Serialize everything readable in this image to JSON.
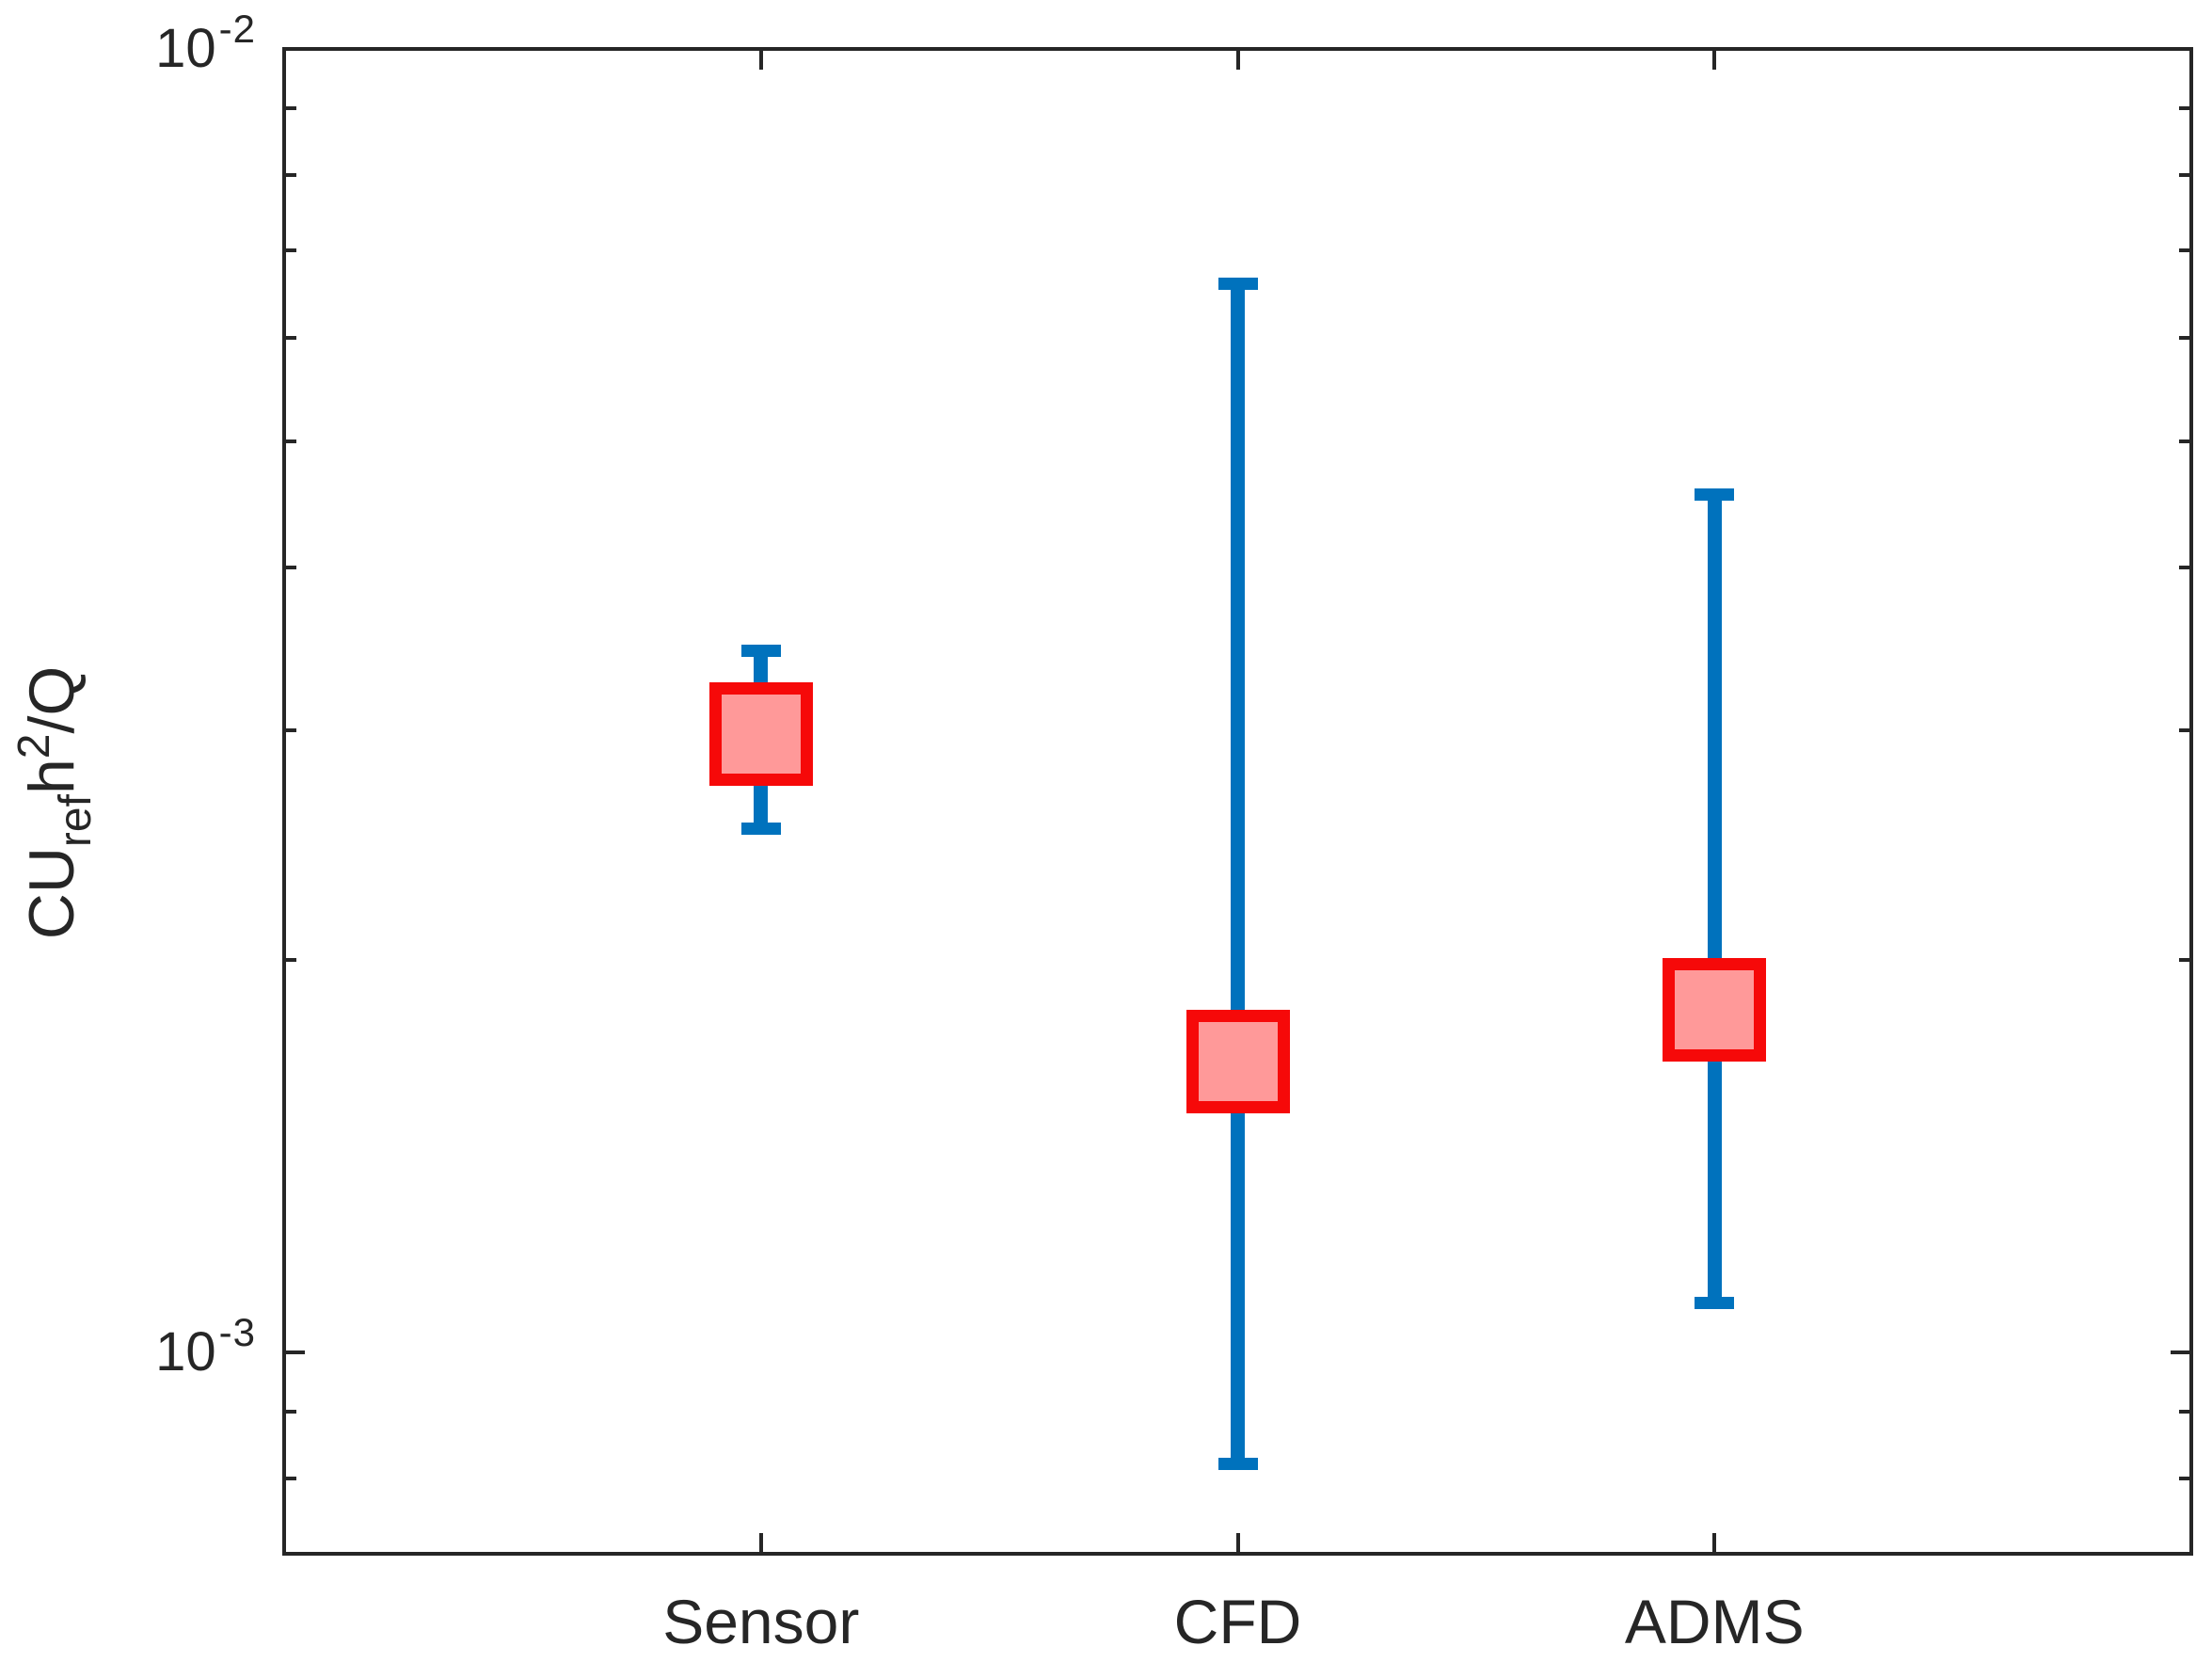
{
  "chart_data": {
    "type": "scatter",
    "subtype": "errorbar",
    "title": "",
    "xlabel": "",
    "ylabel": "CU_ref h^2/Q",
    "ylabel_segments": [
      {
        "text": "CU",
        "style": "base"
      },
      {
        "text": "ref",
        "style": "sub"
      },
      {
        "text": "h",
        "style": "base"
      },
      {
        "text": "2",
        "style": "sup"
      },
      {
        "text": "/Q",
        "style": "base"
      }
    ],
    "categories": [
      "Sensor",
      "CFD",
      "ADMS"
    ],
    "series": [
      {
        "name": "median",
        "values": [
          0.00298,
          0.00167,
          0.00183
        ]
      },
      {
        "name": "upper_whisker",
        "values": [
          0.00345,
          0.0066,
          0.00455
        ]
      },
      {
        "name": "lower_whisker",
        "values": [
          0.00252,
          0.00082,
          0.00109
        ]
      }
    ],
    "yscale": "log",
    "ylim": [
      0.0007,
      0.01
    ],
    "y_major_ticks": [
      {
        "value": 0.01,
        "base": "10",
        "exponent": "-2"
      },
      {
        "value": 0.001,
        "base": "10",
        "exponent": "-3"
      }
    ],
    "y_minor_ticks": [
      0.009,
      0.008,
      0.007,
      0.006,
      0.005,
      0.004,
      0.003,
      0.002,
      0.0009,
      0.0008
    ],
    "grid": false,
    "legend": false,
    "colors": {
      "whisker": "#0072BD",
      "marker_fill": "#FF9999",
      "marker_edge": "#F60909",
      "axis": "#262626",
      "text": "#262626"
    }
  }
}
